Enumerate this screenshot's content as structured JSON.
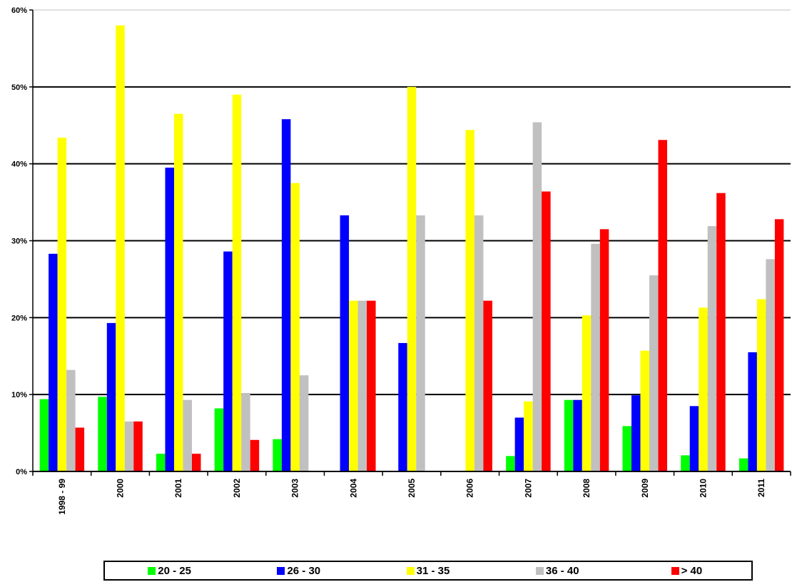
{
  "chart_data": {
    "type": "bar",
    "categories": [
      "1998 - 99",
      "2000",
      "2001",
      "2002",
      "2003",
      "2004",
      "2005",
      "2006",
      "2007",
      "2008",
      "2009",
      "2010",
      "2011"
    ],
    "series": [
      {
        "name": "20 - 25",
        "color": "#00ff00",
        "values": [
          9.4,
          9.7,
          2.3,
          8.2,
          4.2,
          0,
          0,
          0,
          2.0,
          9.3,
          5.9,
          2.1,
          1.7
        ]
      },
      {
        "name": "26 - 30",
        "color": "#0000ff",
        "values": [
          28.3,
          19.3,
          39.5,
          28.6,
          45.8,
          33.3,
          16.7,
          0,
          7.0,
          9.3,
          9.9,
          8.5,
          15.5
        ]
      },
      {
        "name": "31 - 35",
        "color": "#ffff00",
        "values": [
          43.4,
          58.0,
          46.5,
          49.0,
          37.5,
          22.2,
          50.0,
          44.4,
          9.1,
          20.3,
          15.7,
          21.3,
          22.4
        ]
      },
      {
        "name": "36 - 40",
        "color": "#c0c0c0",
        "values": [
          13.2,
          6.5,
          9.3,
          10.2,
          12.5,
          22.2,
          33.3,
          33.3,
          45.4,
          29.6,
          25.5,
          31.9,
          27.6
        ]
      },
      {
        "name": "> 40",
        "color": "#ff0000",
        "values": [
          5.7,
          6.5,
          2.3,
          4.1,
          0,
          22.2,
          0,
          22.2,
          36.4,
          31.5,
          43.1,
          36.2,
          32.8
        ]
      }
    ],
    "yticks": [
      "0%",
      "10%",
      "20%",
      "30%",
      "40%",
      "50%",
      "60%"
    ],
    "ylim": [
      0,
      60
    ],
    "grid": true,
    "legend_position": "bottom"
  }
}
